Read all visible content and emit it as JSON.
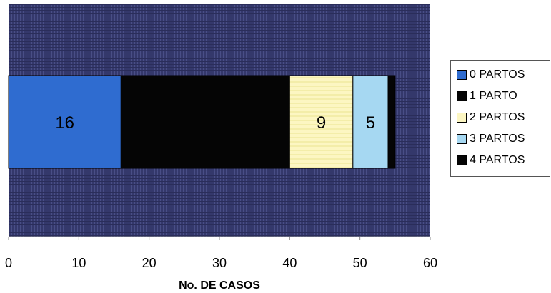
{
  "chart_data": {
    "type": "bar",
    "orientation": "horizontal",
    "stacked": true,
    "xlabel": "No. DE CASOS",
    "ylabel": "",
    "xlim": [
      0,
      60
    ],
    "xticks": [
      "0",
      "10",
      "20",
      "30",
      "40",
      "50",
      "60"
    ],
    "grid": false,
    "legend_position": "right",
    "plot_background": "#33376a",
    "series": [
      {
        "name": "0 PARTOS",
        "values": [
          16
        ],
        "color": "#2f6cd0",
        "data_label": "16"
      },
      {
        "name": "1 PARTO",
        "values": [
          24
        ],
        "color": "#050505",
        "data_label": ""
      },
      {
        "name": "2 PARTOS",
        "values": [
          9
        ],
        "color": "#fcf6c2",
        "data_label": "9"
      },
      {
        "name": "3 PARTOS",
        "values": [
          5
        ],
        "color": "#a6d8f2",
        "data_label": "5"
      },
      {
        "name": "4 PARTOS",
        "values": [
          1
        ],
        "color": "#050505",
        "data_label": ""
      }
    ]
  }
}
